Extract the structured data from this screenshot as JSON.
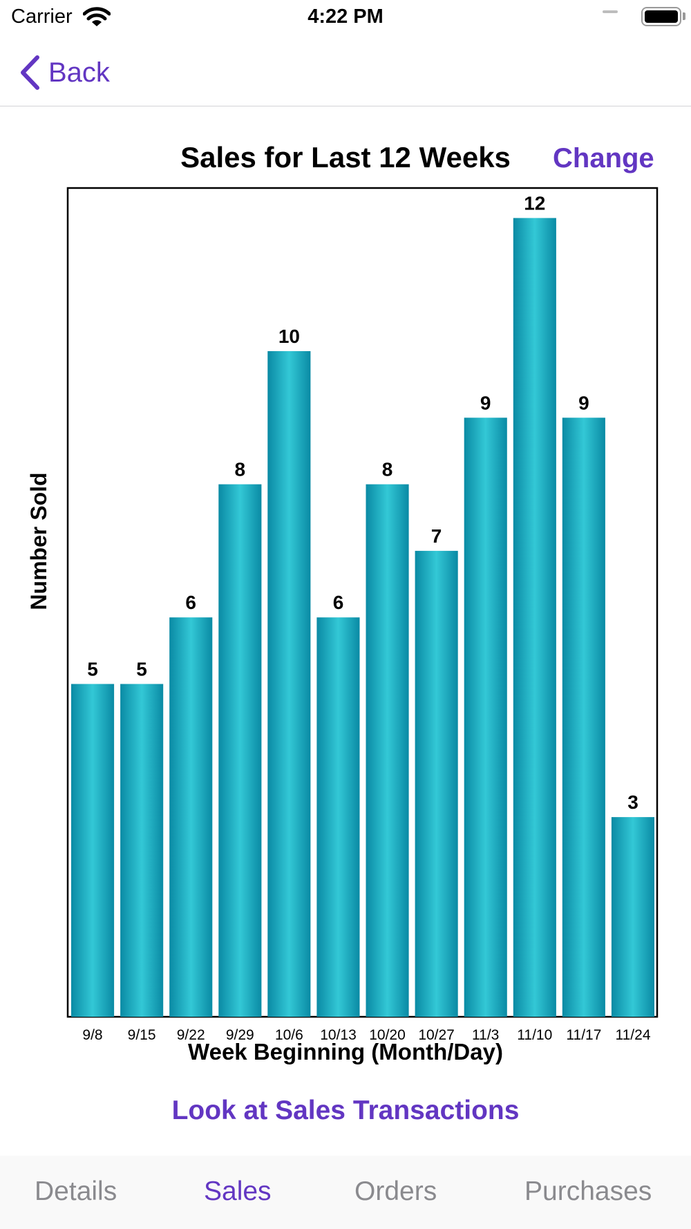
{
  "status_bar": {
    "carrier": "Carrier",
    "time": "4:22 PM"
  },
  "nav": {
    "back_label": "Back"
  },
  "header": {
    "title": "Sales for Last 12 Weeks",
    "change_label": "Change"
  },
  "chart_data": {
    "type": "bar",
    "title": "Sales for Last 12 Weeks",
    "xlabel": "Week Beginning (Month/Day)",
    "ylabel": "Number Sold",
    "categories": [
      "9/8",
      "9/15",
      "9/22",
      "9/29",
      "10/6",
      "10/13",
      "10/20",
      "10/27",
      "11/3",
      "11/10",
      "11/17",
      "11/24"
    ],
    "values": [
      5,
      5,
      6,
      8,
      10,
      6,
      8,
      7,
      9,
      12,
      9,
      3
    ],
    "ylim": [
      0,
      12.5
    ],
    "grid": false,
    "data_labels": true,
    "bar_color": "#17a7bd"
  },
  "actions": {
    "sales_transactions_label": "Look at Sales Transactions"
  },
  "tabs": [
    {
      "label": "Details",
      "active": false
    },
    {
      "label": "Sales",
      "active": true
    },
    {
      "label": "Orders",
      "active": false
    },
    {
      "label": "Purchases",
      "active": false
    }
  ],
  "colors": {
    "accent": "#6236c2",
    "bar": "#17a7bd",
    "tab_inactive": "#8a8a8e"
  }
}
